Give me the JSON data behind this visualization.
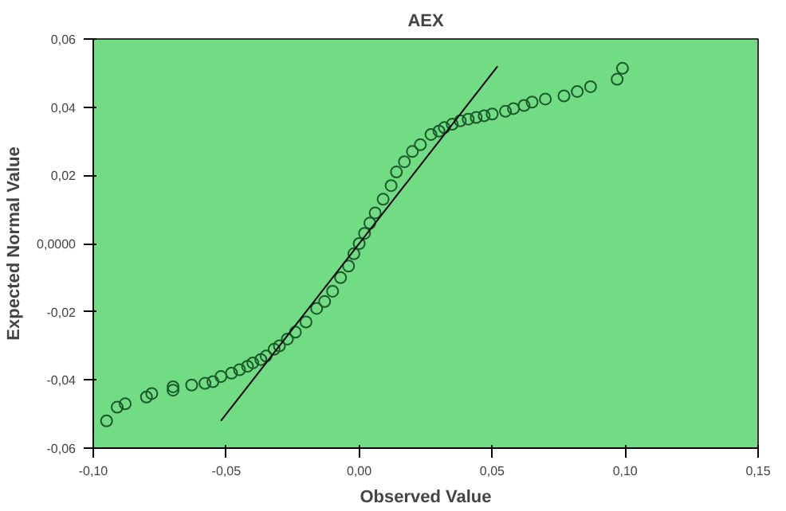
{
  "chart_data": {
    "type": "scatter",
    "title": "AEX",
    "xlabel": "Observed Value",
    "ylabel": "Expected Normal Value",
    "xlim": [
      -0.1,
      0.15
    ],
    "ylim": [
      -0.06,
      0.06
    ],
    "xticks": [
      {
        "value": -0.1,
        "label": "-0,10"
      },
      {
        "value": -0.05,
        "label": "-0,05"
      },
      {
        "value": 0,
        "label": "0,00"
      },
      {
        "value": 0.05,
        "label": "0,05"
      },
      {
        "value": 0.1,
        "label": "0,10"
      },
      {
        "value": 0.15,
        "label": "0,15"
      }
    ],
    "yticks": [
      {
        "value": -0.06,
        "label": "-0,06"
      },
      {
        "value": -0.04,
        "label": "-0,04"
      },
      {
        "value": -0.02,
        "label": "-0,02"
      },
      {
        "value": 0,
        "label": "0,0000"
      },
      {
        "value": 0.02,
        "label": "0,02"
      },
      {
        "value": 0.04,
        "label": "0,04"
      },
      {
        "value": 0.06,
        "label": "0,06"
      }
    ],
    "grid": false,
    "series": [
      {
        "marker": "circle",
        "color": "#1a5a2a",
        "x": [
          -0.095,
          -0.091,
          -0.088,
          -0.08,
          -0.078,
          -0.07,
          -0.07,
          -0.063,
          -0.058,
          -0.055,
          -0.052,
          -0.048,
          -0.045,
          -0.042,
          -0.04,
          -0.037,
          -0.035,
          -0.032,
          -0.03,
          -0.027,
          -0.024,
          -0.02,
          -0.016,
          -0.013,
          -0.01,
          -0.007,
          -0.004,
          -0.002,
          0,
          0.002,
          0.004,
          0.006,
          0.009,
          0.012,
          0.014,
          0.017,
          0.02,
          0.023,
          0.027,
          0.03,
          0.032,
          0.035,
          0.038,
          0.041,
          0.044,
          0.047,
          0.05,
          0.055,
          0.058,
          0.062,
          0.065,
          0.07,
          0.077,
          0.082,
          0.087,
          0.097,
          0.099
        ],
        "values": [
          -0.052,
          -0.048,
          -0.047,
          -0.045,
          -0.044,
          -0.043,
          -0.042,
          -0.0415,
          -0.041,
          -0.0405,
          -0.039,
          -0.038,
          -0.037,
          -0.036,
          -0.035,
          -0.034,
          -0.033,
          -0.031,
          -0.03,
          -0.028,
          -0.026,
          -0.023,
          -0.019,
          -0.017,
          -0.014,
          -0.01,
          -0.0066,
          -0.003,
          0,
          0.003,
          0.006,
          0.009,
          0.013,
          0.017,
          0.021,
          0.024,
          0.027,
          0.029,
          0.032,
          0.033,
          0.034,
          0.035,
          0.036,
          0.0365,
          0.037,
          0.0375,
          0.038,
          0.0388,
          0.0396,
          0.0405,
          0.0415,
          0.0424,
          0.0433,
          0.0446,
          0.046,
          0.0482,
          0.0514
        ]
      },
      {
        "type": "line",
        "color": "#000000",
        "x": [
          -0.052,
          0.052
        ],
        "values": [
          -0.052,
          0.052
        ]
      }
    ]
  }
}
